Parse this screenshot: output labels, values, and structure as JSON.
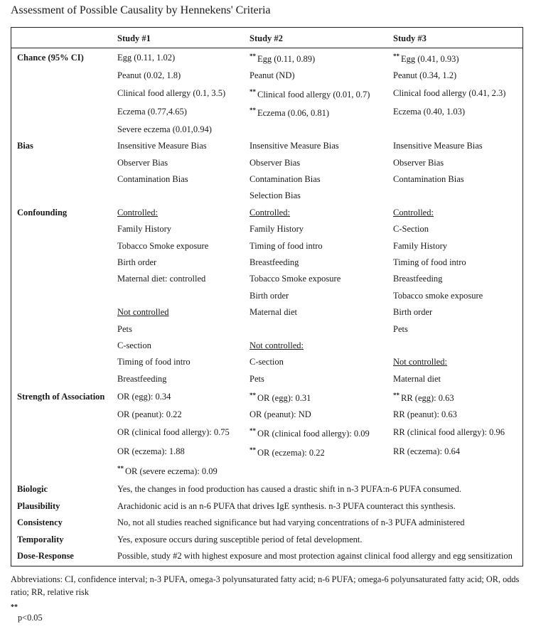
{
  "title": "Assessment of Possible Causality by Hennekens' Criteria",
  "headers": [
    "",
    "Study #1",
    "Study #2",
    "Study #3"
  ],
  "sections": [
    {
      "label": "Chance (95% CI)",
      "lines": [
        [
          {
            "t": "Egg (0.11, 1.02)"
          },
          {
            "t": "Egg (0.11, 0.89)",
            "sig": true
          },
          {
            "t": "Egg (0.41, 0.93)",
            "sig": true
          }
        ],
        [
          {
            "t": "Peanut (0.02, 1.8)"
          },
          {
            "t": "Peanut (ND)"
          },
          {
            "t": "Peanut (0.34, 1.2)"
          }
        ],
        [
          {
            "t": "Clinical food allergy (0.1, 3.5)"
          },
          {
            "t": "Clinical food allergy (0.01, 0.7)",
            "sig": true
          },
          {
            "t": "Clinical food allergy (0.41, 2.3)"
          }
        ],
        [
          {
            "t": "Eczema (0.77,4.65)"
          },
          {
            "t": "Eczema (0.06, 0.81)",
            "sig": true
          },
          {
            "t": "Eczema (0.40, 1.03)"
          }
        ],
        [
          {
            "t": "Severe eczema (0.01,0.94)"
          },
          null,
          null
        ]
      ]
    },
    {
      "label": "Bias",
      "lines": [
        [
          {
            "t": "Insensitive Measure Bias"
          },
          {
            "t": "Insensitive Measure Bias"
          },
          {
            "t": "Insensitive Measure Bias"
          }
        ],
        [
          {
            "t": "Observer Bias"
          },
          {
            "t": "Observer Bias"
          },
          {
            "t": "Observer Bias"
          }
        ],
        [
          {
            "t": "Contamination Bias"
          },
          {
            "t": "Contamination Bias"
          },
          {
            "t": "Contamination Bias"
          }
        ],
        [
          null,
          {
            "t": "Selection Bias"
          },
          null
        ]
      ]
    },
    {
      "label": "Confounding",
      "lines": [
        [
          {
            "t": "Controlled:",
            "u": true
          },
          {
            "t": "Controlled:",
            "u": true
          },
          {
            "t": "Controlled:",
            "u": true
          }
        ],
        [
          {
            "t": "Family History"
          },
          {
            "t": "Family History"
          },
          {
            "t": "C-Section"
          }
        ],
        [
          {
            "t": "Tobacco Smoke exposure"
          },
          {
            "t": "Timing of food intro"
          },
          {
            "t": "Family History"
          }
        ],
        [
          {
            "t": "Birth order"
          },
          {
            "t": "Breastfeeding"
          },
          {
            "t": "Timing of food intro"
          }
        ],
        [
          {
            "t": "Maternal diet: controlled"
          },
          {
            "t": "Tobacco Smoke exposure"
          },
          {
            "t": "Breastfeeding"
          }
        ],
        [
          null,
          {
            "t": "Birth order"
          },
          {
            "t": "Tobacco smoke exposure"
          }
        ],
        [
          {
            "t": "Not controlled",
            "u": true
          },
          {
            "t": "Maternal diet"
          },
          {
            "t": "Birth order"
          }
        ],
        [
          {
            "t": "Pets"
          },
          null,
          {
            "t": "Pets"
          }
        ],
        [
          {
            "t": "C-section"
          },
          {
            "t": "Not controlled:",
            "u": true
          },
          null
        ],
        [
          {
            "t": "Timing of food intro"
          },
          {
            "t": "C-section"
          },
          {
            "t": "Not controlled:",
            "u": true
          }
        ],
        [
          {
            "t": "Breastfeeding"
          },
          {
            "t": "Pets"
          },
          {
            "t": "Maternal diet"
          }
        ]
      ]
    },
    {
      "label": "Strength of Association",
      "lines": [
        [
          {
            "t": "OR (egg): 0.34"
          },
          {
            "t": "OR (egg): 0.31",
            "sig": true
          },
          {
            "t": "RR (egg): 0.63",
            "sig": true
          }
        ],
        [
          {
            "t": "OR (peanut): 0.22"
          },
          {
            "t": "OR (peanut): ND"
          },
          {
            "t": "RR (peanut): 0.63"
          }
        ],
        [
          {
            "t": "OR (clinical food allergy): 0.75"
          },
          {
            "t": "OR (clinical food allergy): 0.09",
            "sig": true
          },
          {
            "t": "RR (clinical food allergy): 0.96"
          }
        ],
        [
          {
            "t": "OR (eczema): 1.88"
          },
          {
            "t": "OR (eczema): 0.22",
            "sig": true
          },
          {
            "t": "RR (eczema): 0.64"
          }
        ],
        [
          {
            "t": "OR (severe eczema): 0.09",
            "sig": true
          },
          null,
          null
        ]
      ]
    }
  ],
  "criteria": [
    {
      "label": "Biologic",
      "text": "Yes, the changes in food production has caused a drastic shift in n-3 PUFA:n-6 PUFA consumed."
    },
    {
      "label": "Plausibility",
      "text": "Arachidonic acid is an n-6 PUFA that drives IgE synthesis. n-3 PUFA counteract this synthesis."
    },
    {
      "label": "Consistency",
      "text": "No, not all studies reached significance but had varying concentrations of n-3 PUFA administered"
    },
    {
      "label": "Temporality",
      "text": "Yes, exposure occurs during susceptible period of fetal development."
    },
    {
      "label": "Dose-Response",
      "text": "Possible, study #2 with highest exposure and most protection against clinical food allergy and egg sensitization"
    }
  ],
  "sig_marker": "**",
  "footnote": "Abbreviations: CI, confidence interval; n-3 PUFA, omega-3 polyunsaturated fatty acid; n-6 PUFA; omega-6 polyunsaturated fatty acid; OR, odds ratio; RR, relative risk",
  "sig_note": "p<0.05"
}
